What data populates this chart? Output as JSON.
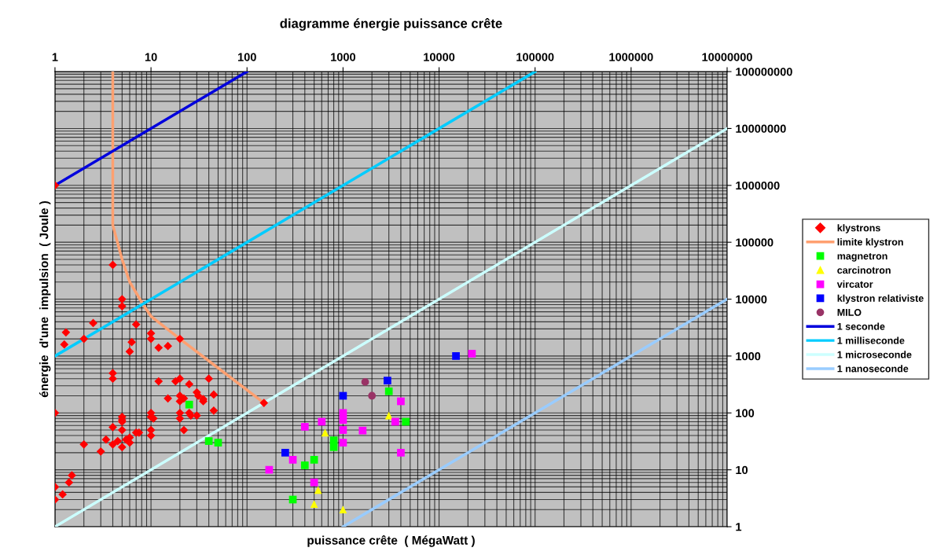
{
  "chart_data": {
    "type": "scatter",
    "title": "diagramme énergie puissance crête",
    "xlabel": "puissance crête  ( MégaWatt )",
    "ylabel": "énergie  d'une  impulsion  ( Joule )",
    "log": "xy",
    "grid": true,
    "legend": "right",
    "xlim": [
      1,
      10000000
    ],
    "ylim": [
      1,
      100000000
    ],
    "xticks": [
      1,
      10,
      100,
      1000,
      10000,
      100000,
      1000000,
      10000000
    ],
    "yticks": [
      1,
      10,
      100,
      1000,
      10000,
      100000,
      1000000,
      10000000,
      100000000
    ],
    "series": [
      {
        "name": "klystrons",
        "marker": "diamond",
        "color": "#ff0000",
        "x": [
          1,
          4,
          5,
          5,
          2.5,
          1.3,
          2,
          1.25,
          7,
          6.3,
          6,
          10,
          10,
          20,
          12,
          15,
          4,
          4,
          12,
          18,
          20,
          40,
          25,
          30,
          31,
          45,
          35,
          35,
          15,
          20,
          22,
          20,
          45,
          1,
          10,
          10,
          10.6,
          20,
          20,
          25,
          26,
          30,
          22,
          5,
          5,
          5,
          4,
          5,
          10,
          10,
          7,
          7.5,
          6,
          5.5,
          6,
          4.5,
          3.4,
          4,
          5,
          2,
          3,
          1.5,
          1.4,
          1,
          1.2,
          1,
          150
        ],
        "values": [
          1000000,
          40000,
          10000,
          7500,
          3800,
          2600,
          2000,
          1600,
          3600,
          1760,
          1200,
          2500,
          2000,
          2000,
          1400,
          1500,
          500,
          400,
          360,
          360,
          400,
          400,
          320,
          230,
          200,
          210,
          175,
          160,
          180,
          200,
          180,
          160,
          110,
          100,
          100,
          85,
          80,
          100,
          80,
          100,
          90,
          90,
          50,
          85,
          75,
          70,
          56,
          50,
          50,
          40,
          45,
          45,
          37,
          34,
          30,
          32,
          34,
          28,
          25,
          28,
          21,
          8,
          6,
          5,
          3.7,
          3,
          150
        ]
      },
      {
        "name": "limite klystron",
        "type": "line",
        "marker": "none",
        "color": "#ffa070",
        "x": [
          4,
          4,
          5,
          6,
          8.5,
          10,
          20,
          150
        ],
        "values": [
          100000000,
          200000,
          50000,
          20000,
          7500,
          5000,
          2000,
          150
        ]
      },
      {
        "name": "magnetron",
        "marker": "square",
        "color": "#00ff00",
        "x": [
          25,
          40,
          50,
          3000,
          4500,
          800,
          800,
          500,
          400,
          300
        ],
        "values": [
          140,
          32,
          30,
          240,
          70,
          33,
          25,
          15,
          12,
          3
        ]
      },
      {
        "name": "carcinotron",
        "marker": "triangle",
        "color": "#ffff00",
        "x": [
          3000,
          650,
          550,
          500,
          1000
        ],
        "values": [
          90,
          45,
          4.4,
          2.5,
          2
        ]
      },
      {
        "name": "vircator",
        "marker": "square",
        "color": "#ff00ff",
        "x": [
          22000,
          1000,
          1000,
          1000,
          1000,
          600,
          400,
          1600,
          4000,
          3500,
          4000,
          300,
          170,
          500
        ],
        "values": [
          1100,
          100,
          75,
          50,
          30,
          70,
          57,
          49,
          160,
          70,
          20,
          15,
          10,
          6
        ]
      },
      {
        "name": "klystron relativiste",
        "marker": "square",
        "color": "#0000ff",
        "x": [
          15000,
          2900,
          1000,
          250
        ],
        "values": [
          1000,
          370,
          200,
          20
        ]
      },
      {
        "name": "MILO",
        "marker": "circle",
        "color": "#993366",
        "x": [
          1700,
          2000
        ],
        "values": [
          350,
          200
        ]
      },
      {
        "name": "1 seconde",
        "type": "line",
        "marker": "none",
        "color": "#0000dd",
        "x": [
          1,
          100
        ],
        "values": [
          1000000,
          100000000
        ]
      },
      {
        "name": "1 milliseconde",
        "type": "line",
        "marker": "none",
        "color": "#00ccff",
        "x": [
          1,
          100000
        ],
        "values": [
          1000,
          100000000
        ]
      },
      {
        "name": "1 microseconde",
        "type": "line",
        "marker": "none",
        "color": "#ccffff",
        "x": [
          1,
          10000000
        ],
        "values": [
          1,
          10000000
        ]
      },
      {
        "name": "1 nanoseconde",
        "type": "line",
        "marker": "none",
        "color": "#99ccff",
        "x": [
          1000,
          10000000
        ],
        "values": [
          1,
          10000
        ]
      }
    ]
  }
}
